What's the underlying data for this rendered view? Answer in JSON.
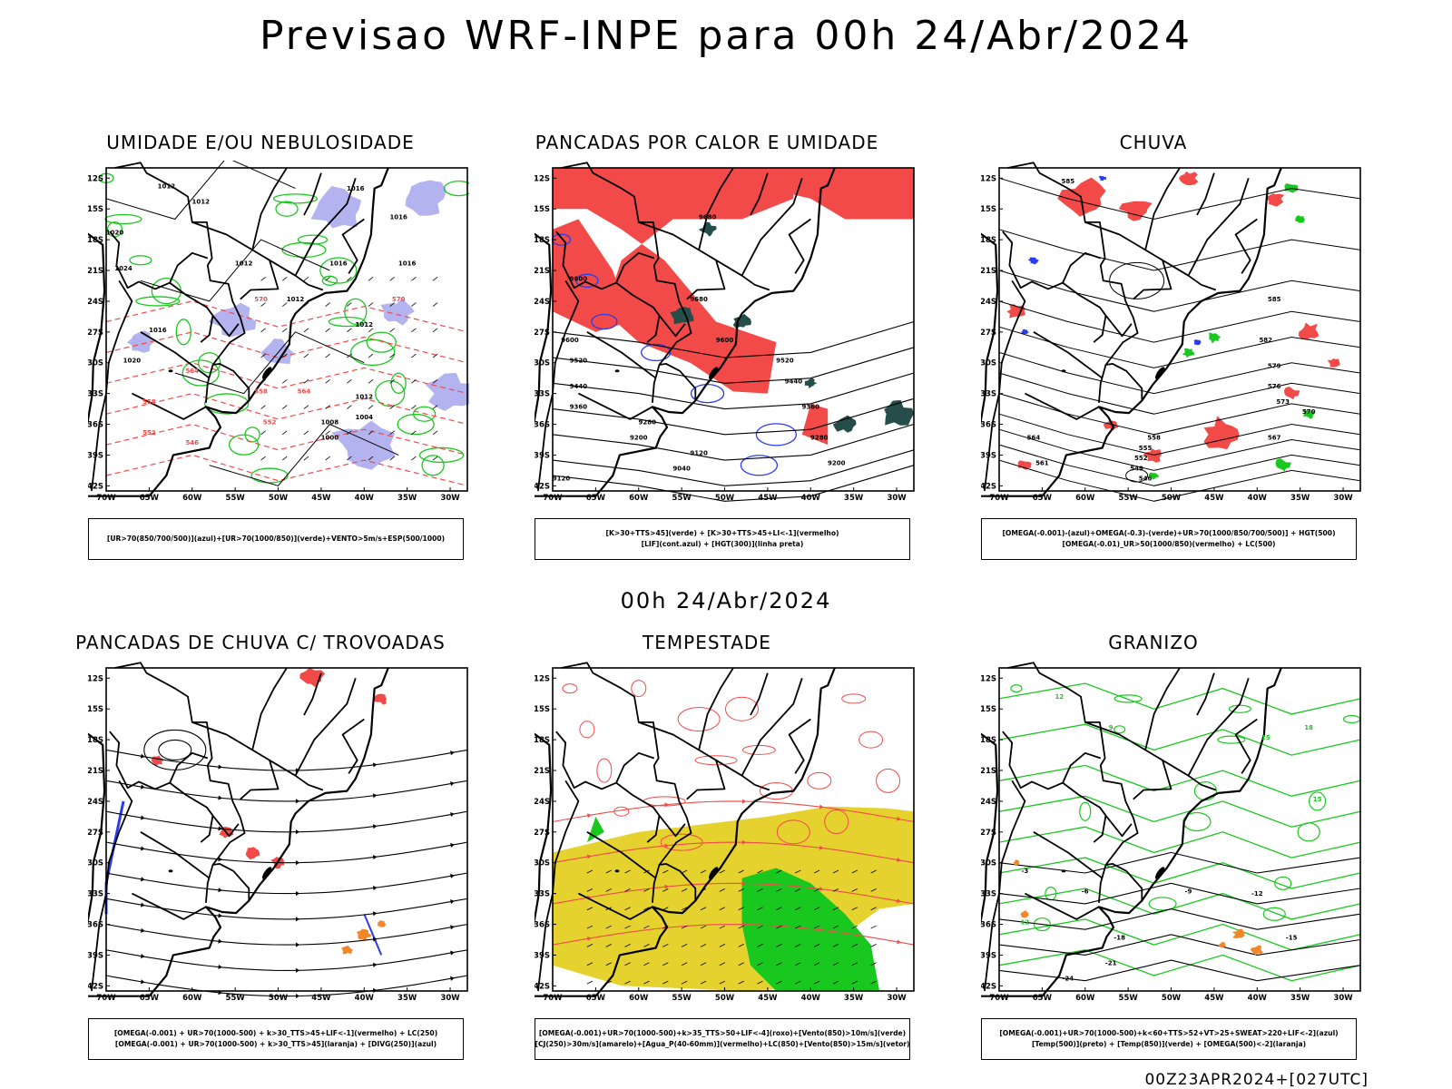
{
  "title": "Previsao WRF-INPE  para 00h 24/Abr/2024",
  "subtitle": "00h 24/Abr/2024",
  "footer": "00Z23APR2024+[027UTC]",
  "axes": {
    "lat_labels": [
      "12S",
      "15S",
      "18S",
      "21S",
      "24S",
      "27S",
      "30S",
      "33S",
      "36S",
      "39S",
      "42S"
    ],
    "lon_labels": [
      "70W",
      "65W",
      "60W",
      "55W",
      "50W",
      "45W",
      "40W",
      "35W",
      "30W"
    ]
  },
  "colors": {
    "red": "#f24a48",
    "green": "#19c81e",
    "blue": "#2a3cf0",
    "lavender": "#b3b3ef",
    "yellow": "#e5d22e",
    "darkgreen": "#254d4a",
    "orange": "#f0872a",
    "black": "#000000"
  },
  "panels": [
    {
      "title": "UMIDADE E/OU NEBULOSIDADE",
      "legend": [
        "[UR>70(850/700/500)](azul)+[UR>70(1000/850)](verde)+VENTO>5m/s+ESP(500/1000)"
      ],
      "contour_labels": [
        "1012",
        "1012",
        "1016",
        "1016",
        "1016",
        "1016",
        "1012",
        "1020",
        "1024",
        "1012",
        "1012",
        "1016",
        "1020",
        "1008",
        "1004",
        "1000",
        "1012",
        "570",
        "564",
        "558",
        "552",
        "546",
        "570",
        "558",
        "564",
        "552"
      ]
    },
    {
      "title": "PANCADAS POR CALOR E UMIDADE",
      "legend": [
        "[K>30+TTS>45](verde) + [K>30+TTS>45+LI<-1](vermelho)",
        "[LIF](cont.azul) + [HGT(300)](linha preta)"
      ],
      "contour_labels": [
        "9680",
        "9600",
        "9680",
        "9600",
        "9520",
        "9440",
        "9360",
        "9280",
        "9200",
        "9120",
        "9040",
        "9120",
        "9520",
        "9440",
        "9360",
        "9280",
        "9200",
        "9600"
      ]
    },
    {
      "title": "CHUVA",
      "legend": [
        "[OMEGA(-0.001)-(azul)+OMEGA(-0.3)-(verde)+UR>70(1000/850/700/500)] + HGT(500)",
        "[OMEGA(-0.01)_UR>50(1000/850)(vermelho) + LC(500)"
      ],
      "contour_labels": [
        "585",
        "585",
        "582",
        "579",
        "576",
        "573",
        "570",
        "567",
        "564",
        "561",
        "558",
        "555",
        "552",
        "549",
        "546"
      ]
    },
    {
      "title": "PANCADAS DE CHUVA C/ TROVOADAS",
      "legend": [
        "[OMEGA(-0.001) + UR>70(1000-500) + k>30_TTS>45+LIF<-1](vermelho) + LC(250)",
        "[OMEGA(-0.001) + UR>70(1000-500) + k>30_TTS>45](laranja) + [DIVG(250)](azul)"
      ],
      "contour_labels": []
    },
    {
      "title": "TEMPESTADE",
      "legend": [
        "[OMEGA(-0.001)+UR>70(1000-500)+k>35_TTS>50+LIF<-4](roxo)+[Vento(850)>10m/s](verde)",
        "[CJ(250)>30m/s](amarelo)+[Agua_P(40-60mm)](vermelho)+LC(850)+[Vento(850)>15m/s](vetor)"
      ],
      "contour_labels": []
    },
    {
      "title": "GRANIZO",
      "legend": [
        "[OMEGA(-0.001)+UR>70(1000-500)+k<60+TTS>52+VT>25+SWEAT>220+LIF<-2](azul)",
        "[Temp(500)](preto) + [Temp(850)](verde) + [OMEGA(500)<-2](laranja)"
      ],
      "contour_labels": [
        "-3",
        "-6",
        "-9",
        "-12",
        "-15",
        "-18",
        "-21",
        "-24",
        "12",
        "15",
        "18",
        "15",
        "12",
        "9"
      ]
    }
  ]
}
